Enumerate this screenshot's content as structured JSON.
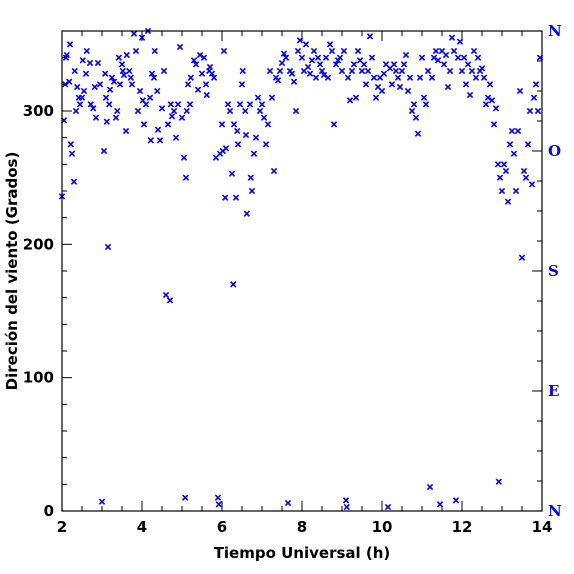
{
  "chart_data": {
    "type": "scatter",
    "xlabel": "Tiempo Universal (h)",
    "ylabel": "Direción del viento (Grados)",
    "xlim": [
      2,
      14
    ],
    "ylim": [
      0,
      360
    ],
    "x_ticks": [
      2,
      4,
      6,
      8,
      10,
      12,
      14
    ],
    "y_ticks": [
      0,
      100,
      200,
      300
    ],
    "x_tick_labels": [
      "2",
      "4",
      "6",
      "8",
      "10",
      "12",
      "14"
    ],
    "y_tick_labels": [
      "0",
      "100",
      "200",
      "300"
    ],
    "compass_axis": {
      "labels": [
        "N",
        "E",
        "S",
        "O",
        "N"
      ],
      "degrees": [
        0,
        90,
        180,
        270,
        360
      ]
    },
    "marker": "x",
    "marker_color": "#0000ff",
    "grid": false,
    "points": [
      [
        2.0,
        236
      ],
      [
        2.05,
        293
      ],
      [
        2.08,
        320
      ],
      [
        2.1,
        340
      ],
      [
        2.12,
        342
      ],
      [
        2.18,
        322
      ],
      [
        2.2,
        350
      ],
      [
        2.22,
        275
      ],
      [
        2.25,
        268
      ],
      [
        2.3,
        247
      ],
      [
        2.32,
        330
      ],
      [
        2.35,
        300
      ],
      [
        2.38,
        318
      ],
      [
        2.42,
        310
      ],
      [
        2.45,
        305
      ],
      [
        2.5,
        310
      ],
      [
        2.52,
        338
      ],
      [
        2.55,
        315
      ],
      [
        2.6,
        328
      ],
      [
        2.62,
        345
      ],
      [
        2.7,
        336
      ],
      [
        2.72,
        305
      ],
      [
        2.78,
        302
      ],
      [
        2.82,
        318
      ],
      [
        2.85,
        295
      ],
      [
        2.9,
        336
      ],
      [
        2.95,
        320
      ],
      [
        3.0,
        7
      ],
      [
        3.05,
        270
      ],
      [
        3.08,
        328
      ],
      [
        3.1,
        310
      ],
      [
        3.12,
        292
      ],
      [
        3.15,
        198
      ],
      [
        3.18,
        305
      ],
      [
        3.2,
        316
      ],
      [
        3.25,
        325
      ],
      [
        3.3,
        322
      ],
      [
        3.35,
        295
      ],
      [
        3.38,
        300
      ],
      [
        3.42,
        340
      ],
      [
        3.45,
        320
      ],
      [
        3.5,
        335
      ],
      [
        3.52,
        330
      ],
      [
        3.55,
        327
      ],
      [
        3.6,
        285
      ],
      [
        3.62,
        342
      ],
      [
        3.68,
        330
      ],
      [
        3.72,
        325
      ],
      [
        3.75,
        320
      ],
      [
        3.8,
        358
      ],
      [
        3.85,
        345
      ],
      [
        3.9,
        300
      ],
      [
        3.95,
        315
      ],
      [
        4.0,
        355
      ],
      [
        4.02,
        308
      ],
      [
        4.05,
        290
      ],
      [
        4.1,
        305
      ],
      [
        4.15,
        360
      ],
      [
        4.2,
        310
      ],
      [
        4.22,
        278
      ],
      [
        4.25,
        328
      ],
      [
        4.3,
        325
      ],
      [
        4.32,
        345
      ],
      [
        4.38,
        315
      ],
      [
        4.4,
        286
      ],
      [
        4.45,
        278
      ],
      [
        4.5,
        302
      ],
      [
        4.55,
        330
      ],
      [
        4.6,
        162
      ],
      [
        4.65,
        290
      ],
      [
        4.7,
        158
      ],
      [
        4.72,
        305
      ],
      [
        4.75,
        296
      ],
      [
        4.8,
        300
      ],
      [
        4.85,
        280
      ],
      [
        4.9,
        305
      ],
      [
        4.95,
        348
      ],
      [
        5.0,
        295
      ],
      [
        5.05,
        265
      ],
      [
        5.08,
        10
      ],
      [
        5.1,
        250
      ],
      [
        5.12,
        300
      ],
      [
        5.15,
        320
      ],
      [
        5.2,
        305
      ],
      [
        5.22,
        325
      ],
      [
        5.3,
        338
      ],
      [
        5.35,
        335
      ],
      [
        5.4,
        316
      ],
      [
        5.45,
        342
      ],
      [
        5.5,
        328
      ],
      [
        5.55,
        340
      ],
      [
        5.6,
        320
      ],
      [
        5.62,
        312
      ],
      [
        5.68,
        330
      ],
      [
        5.7,
        333
      ],
      [
        5.75,
        328
      ],
      [
        5.8,
        325
      ],
      [
        5.85,
        265
      ],
      [
        5.9,
        10
      ],
      [
        5.92,
        5
      ],
      [
        5.95,
        268
      ],
      [
        6.0,
        290
      ],
      [
        6.02,
        270
      ],
      [
        6.05,
        345
      ],
      [
        6.08,
        235
      ],
      [
        6.1,
        272
      ],
      [
        6.15,
        305
      ],
      [
        6.2,
        300
      ],
      [
        6.25,
        253
      ],
      [
        6.28,
        170
      ],
      [
        6.3,
        290
      ],
      [
        6.35,
        235
      ],
      [
        6.38,
        285
      ],
      [
        6.4,
        275
      ],
      [
        6.45,
        305
      ],
      [
        6.5,
        320
      ],
      [
        6.52,
        330
      ],
      [
        6.58,
        300
      ],
      [
        6.6,
        282
      ],
      [
        6.62,
        223
      ],
      [
        6.7,
        305
      ],
      [
        6.72,
        250
      ],
      [
        6.75,
        240
      ],
      [
        6.8,
        268
      ],
      [
        6.85,
        280
      ],
      [
        6.9,
        310
      ],
      [
        6.95,
        300
      ],
      [
        7.0,
        305
      ],
      [
        7.05,
        295
      ],
      [
        7.1,
        275
      ],
      [
        7.15,
        290
      ],
      [
        7.2,
        330
      ],
      [
        7.25,
        310
      ],
      [
        7.3,
        255
      ],
      [
        7.35,
        325
      ],
      [
        7.4,
        323
      ],
      [
        7.45,
        330
      ],
      [
        7.5,
        336
      ],
      [
        7.55,
        343
      ],
      [
        7.6,
        340
      ],
      [
        7.65,
        6
      ],
      [
        7.7,
        330
      ],
      [
        7.75,
        328
      ],
      [
        7.8,
        322
      ],
      [
        7.85,
        300
      ],
      [
        7.9,
        345
      ],
      [
        7.95,
        353
      ],
      [
        8.0,
        340
      ],
      [
        8.05,
        330
      ],
      [
        8.1,
        350
      ],
      [
        8.15,
        333
      ],
      [
        8.2,
        328
      ],
      [
        8.25,
        338
      ],
      [
        8.3,
        345
      ],
      [
        8.35,
        325
      ],
      [
        8.4,
        340
      ],
      [
        8.45,
        335
      ],
      [
        8.5,
        330
      ],
      [
        8.55,
        327
      ],
      [
        8.6,
        340
      ],
      [
        8.65,
        325
      ],
      [
        8.7,
        350
      ],
      [
        8.75,
        345
      ],
      [
        8.8,
        290
      ],
      [
        8.85,
        335
      ],
      [
        8.9,
        338
      ],
      [
        8.95,
        340
      ],
      [
        9.0,
        330
      ],
      [
        9.05,
        345
      ],
      [
        9.1,
        8
      ],
      [
        9.12,
        3
      ],
      [
        9.15,
        325
      ],
      [
        9.2,
        308
      ],
      [
        9.25,
        330
      ],
      [
        9.3,
        335
      ],
      [
        9.35,
        310
      ],
      [
        9.4,
        345
      ],
      [
        9.45,
        338
      ],
      [
        9.5,
        330
      ],
      [
        9.55,
        335
      ],
      [
        9.6,
        320
      ],
      [
        9.65,
        330
      ],
      [
        9.7,
        356
      ],
      [
        9.75,
        340
      ],
      [
        9.8,
        325
      ],
      [
        9.85,
        310
      ],
      [
        9.9,
        318
      ],
      [
        9.95,
        325
      ],
      [
        10.0,
        315
      ],
      [
        10.05,
        328
      ],
      [
        10.1,
        335
      ],
      [
        10.15,
        3
      ],
      [
        10.2,
        332
      ],
      [
        10.25,
        320
      ],
      [
        10.3,
        335
      ],
      [
        10.35,
        330
      ],
      [
        10.4,
        325
      ],
      [
        10.45,
        318
      ],
      [
        10.5,
        330
      ],
      [
        10.55,
        335
      ],
      [
        10.6,
        342
      ],
      [
        10.65,
        315
      ],
      [
        10.7,
        325
      ],
      [
        10.75,
        300
      ],
      [
        10.8,
        305
      ],
      [
        10.85,
        295
      ],
      [
        10.9,
        283
      ],
      [
        10.95,
        325
      ],
      [
        11.0,
        340
      ],
      [
        11.05,
        310
      ],
      [
        11.1,
        305
      ],
      [
        11.15,
        330
      ],
      [
        11.2,
        18
      ],
      [
        11.25,
        325
      ],
      [
        11.3,
        340
      ],
      [
        11.35,
        345
      ],
      [
        11.4,
        338
      ],
      [
        11.45,
        5
      ],
      [
        11.5,
        345
      ],
      [
        11.55,
        335
      ],
      [
        11.6,
        342
      ],
      [
        11.65,
        318
      ],
      [
        11.7,
        330
      ],
      [
        11.75,
        355
      ],
      [
        11.8,
        345
      ],
      [
        11.85,
        8
      ],
      [
        11.9,
        340
      ],
      [
        11.95,
        352
      ],
      [
        12.0,
        330
      ],
      [
        12.05,
        340
      ],
      [
        12.1,
        320
      ],
      [
        12.15,
        335
      ],
      [
        12.2,
        312
      ],
      [
        12.25,
        330
      ],
      [
        12.3,
        345
      ],
      [
        12.35,
        325
      ],
      [
        12.4,
        340
      ],
      [
        12.45,
        330
      ],
      [
        12.5,
        332
      ],
      [
        12.55,
        325
      ],
      [
        12.6,
        305
      ],
      [
        12.65,
        310
      ],
      [
        12.7,
        320
      ],
      [
        12.75,
        308
      ],
      [
        12.8,
        290
      ],
      [
        12.85,
        302
      ],
      [
        12.9,
        260
      ],
      [
        12.92,
        22
      ],
      [
        12.95,
        250
      ],
      [
        13.0,
        240
      ],
      [
        13.05,
        260
      ],
      [
        13.1,
        255
      ],
      [
        13.15,
        232
      ],
      [
        13.2,
        275
      ],
      [
        13.25,
        285
      ],
      [
        13.3,
        268
      ],
      [
        13.35,
        240
      ],
      [
        13.4,
        285
      ],
      [
        13.45,
        315
      ],
      [
        13.5,
        190
      ],
      [
        13.55,
        255
      ],
      [
        13.6,
        250
      ],
      [
        13.65,
        275
      ],
      [
        13.7,
        300
      ],
      [
        13.75,
        245
      ],
      [
        13.8,
        310
      ],
      [
        13.85,
        320
      ],
      [
        13.9,
        300
      ],
      [
        13.95,
        340
      ]
    ]
  }
}
